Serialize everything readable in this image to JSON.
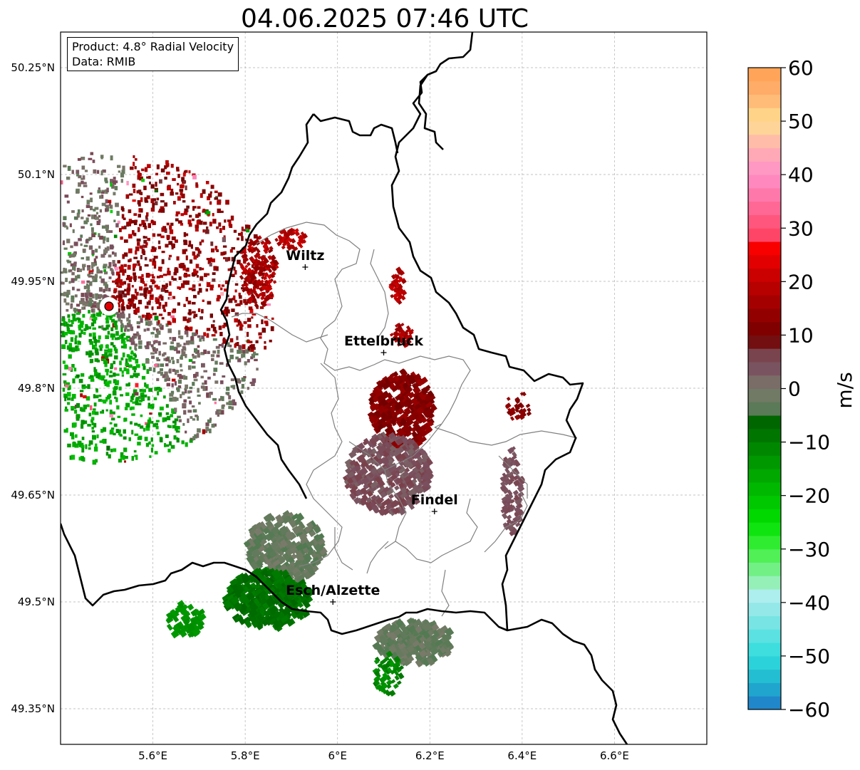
{
  "title": "04.06.2025 07:46 UTC",
  "info_box": {
    "product": "Product: 4.8° Radial Velocity",
    "data": "Data: RMIB"
  },
  "axes": {
    "lon_ticks": [
      "5.6°E",
      "5.8°E",
      "6°E",
      "6.2°E",
      "6.4°E",
      "6.6°E"
    ],
    "lat_ticks": [
      "50.25°N",
      "50.1°N",
      "49.95°N",
      "49.8°N",
      "49.65°N",
      "49.5°N",
      "49.35°N"
    ],
    "lon_range": [
      5.4,
      6.8
    ],
    "lat_range": [
      49.3,
      50.3
    ],
    "grid": true
  },
  "cities": [
    {
      "name": "Wiltz",
      "lon": 5.93,
      "lat": 49.97
    },
    {
      "name": "Ettelbruck",
      "lon": 6.1,
      "lat": 49.85
    },
    {
      "name": "Findel",
      "lon": 6.21,
      "lat": 49.627
    },
    {
      "name": "Esch/Alzette",
      "lon": 5.99,
      "lat": 49.5
    }
  ],
  "radar_site": {
    "lon": 5.505,
    "lat": 49.915,
    "color": "#e00000"
  },
  "colorbar": {
    "unit": "m/s",
    "range": [
      -60,
      60
    ],
    "ticks": [
      "60",
      "50",
      "40",
      "30",
      "20",
      "10",
      "0",
      "−10",
      "−20",
      "−30",
      "−40",
      "−50",
      "−60"
    ],
    "stops": [
      {
        "v": -60,
        "color": "#1f78c8"
      },
      {
        "v": -55,
        "color": "#20b4d0"
      },
      {
        "v": -50,
        "color": "#30dcdc"
      },
      {
        "v": -42,
        "color": "#8ce6e6"
      },
      {
        "v": -38,
        "color": "#b4f0f0"
      },
      {
        "v": -36,
        "color": "#90f0b0"
      },
      {
        "v": -30,
        "color": "#40f040"
      },
      {
        "v": -25,
        "color": "#00e000"
      },
      {
        "v": -15,
        "color": "#00a000"
      },
      {
        "v": -6,
        "color": "#006400"
      },
      {
        "v": -5,
        "color": "#507a50"
      },
      {
        "v": 0,
        "color": "#7a7a6a"
      },
      {
        "v": 4,
        "color": "#7a5060"
      },
      {
        "v": 8,
        "color": "#7a3a40"
      },
      {
        "v": 9,
        "color": "#700000"
      },
      {
        "v": 20,
        "color": "#c00000"
      },
      {
        "v": 27,
        "color": "#ff0000"
      },
      {
        "v": 28,
        "color": "#ff4060"
      },
      {
        "v": 35,
        "color": "#ff70a0"
      },
      {
        "v": 40,
        "color": "#ff90c8"
      },
      {
        "v": 45,
        "color": "#ffb0b0"
      },
      {
        "v": 50,
        "color": "#ffe090"
      },
      {
        "v": 55,
        "color": "#ffb070"
      },
      {
        "v": 60,
        "color": "#ffa050"
      }
    ]
  }
}
